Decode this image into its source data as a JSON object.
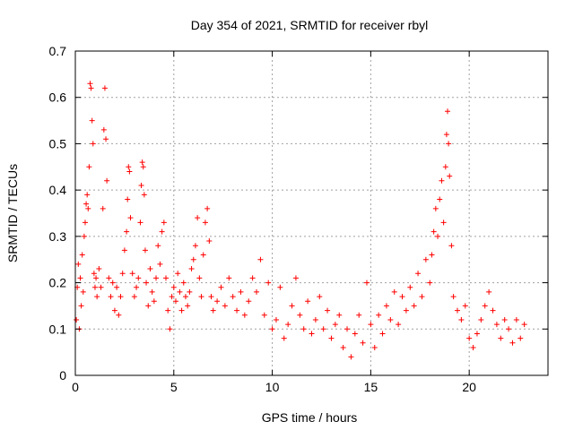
{
  "chart_data": {
    "type": "scatter",
    "title": "Day 354 of 2021, SRMTID for receiver rbyl",
    "xlabel": "GPS time / hours",
    "ylabel": "SRMTID / TECUs",
    "xlim": [
      0,
      24
    ],
    "ylim": [
      0,
      0.7
    ],
    "xticks": [
      0,
      5,
      10,
      15,
      20
    ],
    "yticks": [
      0,
      0.1,
      0.2,
      0.3,
      0.4,
      0.5,
      0.6,
      0.7
    ],
    "grid": true,
    "marker": "+",
    "series": [
      {
        "name": "SRMTID",
        "color": "#ff0000",
        "points": [
          [
            0.05,
            0.12
          ],
          [
            0.1,
            0.19
          ],
          [
            0.15,
            0.24
          ],
          [
            0.2,
            0.1
          ],
          [
            0.25,
            0.21
          ],
          [
            0.3,
            0.15
          ],
          [
            0.35,
            0.26
          ],
          [
            0.4,
            0.18
          ],
          [
            0.45,
            0.3
          ],
          [
            0.5,
            0.33
          ],
          [
            0.55,
            0.37
          ],
          [
            0.6,
            0.39
          ],
          [
            0.65,
            0.36
          ],
          [
            0.7,
            0.45
          ],
          [
            0.75,
            0.63
          ],
          [
            0.8,
            0.62
          ],
          [
            0.85,
            0.55
          ],
          [
            0.9,
            0.5
          ],
          [
            0.95,
            0.22
          ],
          [
            1.0,
            0.19
          ],
          [
            1.05,
            0.21
          ],
          [
            1.1,
            0.17
          ],
          [
            1.2,
            0.23
          ],
          [
            1.3,
            0.19
          ],
          [
            1.4,
            0.36
          ],
          [
            1.45,
            0.53
          ],
          [
            1.5,
            0.62
          ],
          [
            1.55,
            0.51
          ],
          [
            1.6,
            0.42
          ],
          [
            1.7,
            0.21
          ],
          [
            1.8,
            0.17
          ],
          [
            1.9,
            0.2
          ],
          [
            2.0,
            0.14
          ],
          [
            2.1,
            0.19
          ],
          [
            2.2,
            0.13
          ],
          [
            2.3,
            0.17
          ],
          [
            2.4,
            0.22
          ],
          [
            2.5,
            0.27
          ],
          [
            2.6,
            0.31
          ],
          [
            2.65,
            0.38
          ],
          [
            2.7,
            0.45
          ],
          [
            2.75,
            0.44
          ],
          [
            2.8,
            0.34
          ],
          [
            2.9,
            0.22
          ],
          [
            3.0,
            0.17
          ],
          [
            3.1,
            0.19
          ],
          [
            3.2,
            0.21
          ],
          [
            3.3,
            0.33
          ],
          [
            3.35,
            0.41
          ],
          [
            3.4,
            0.46
          ],
          [
            3.45,
            0.45
          ],
          [
            3.5,
            0.39
          ],
          [
            3.55,
            0.27
          ],
          [
            3.6,
            0.2
          ],
          [
            3.7,
            0.15
          ],
          [
            3.8,
            0.23
          ],
          [
            3.9,
            0.18
          ],
          [
            4.0,
            0.16
          ],
          [
            4.1,
            0.21
          ],
          [
            4.2,
            0.28
          ],
          [
            4.3,
            0.24
          ],
          [
            4.4,
            0.31
          ],
          [
            4.5,
            0.33
          ],
          [
            4.6,
            0.21
          ],
          [
            4.7,
            0.14
          ],
          [
            4.8,
            0.1
          ],
          [
            4.9,
            0.17
          ],
          [
            5.0,
            0.19
          ],
          [
            5.1,
            0.16
          ],
          [
            5.2,
            0.22
          ],
          [
            5.3,
            0.18
          ],
          [
            5.4,
            0.14
          ],
          [
            5.5,
            0.2
          ],
          [
            5.6,
            0.17
          ],
          [
            5.7,
            0.15
          ],
          [
            5.8,
            0.18
          ],
          [
            5.9,
            0.23
          ],
          [
            6.0,
            0.25
          ],
          [
            6.1,
            0.28
          ],
          [
            6.2,
            0.34
          ],
          [
            6.3,
            0.21
          ],
          [
            6.4,
            0.17
          ],
          [
            6.5,
            0.26
          ],
          [
            6.6,
            0.33
          ],
          [
            6.7,
            0.36
          ],
          [
            6.8,
            0.29
          ],
          [
            6.9,
            0.17
          ],
          [
            7.0,
            0.14
          ],
          [
            7.2,
            0.16
          ],
          [
            7.4,
            0.19
          ],
          [
            7.6,
            0.15
          ],
          [
            7.8,
            0.21
          ],
          [
            8.0,
            0.17
          ],
          [
            8.2,
            0.14
          ],
          [
            8.4,
            0.18
          ],
          [
            8.6,
            0.13
          ],
          [
            8.8,
            0.16
          ],
          [
            9.0,
            0.21
          ],
          [
            9.2,
            0.18
          ],
          [
            9.4,
            0.25
          ],
          [
            9.6,
            0.13
          ],
          [
            9.8,
            0.2
          ],
          [
            10.0,
            0.1
          ],
          [
            10.2,
            0.12
          ],
          [
            10.4,
            0.19
          ],
          [
            10.6,
            0.08
          ],
          [
            10.8,
            0.11
          ],
          [
            11.0,
            0.15
          ],
          [
            11.2,
            0.21
          ],
          [
            11.4,
            0.13
          ],
          [
            11.6,
            0.1
          ],
          [
            11.8,
            0.16
          ],
          [
            12.0,
            0.09
          ],
          [
            12.2,
            0.12
          ],
          [
            12.4,
            0.17
          ],
          [
            12.6,
            0.1
          ],
          [
            12.8,
            0.14
          ],
          [
            13.0,
            0.08
          ],
          [
            13.2,
            0.11
          ],
          [
            13.4,
            0.13
          ],
          [
            13.6,
            0.06
          ],
          [
            13.8,
            0.1
          ],
          [
            14.0,
            0.04
          ],
          [
            14.2,
            0.09
          ],
          [
            14.4,
            0.13
          ],
          [
            14.6,
            0.07
          ],
          [
            14.8,
            0.2
          ],
          [
            15.0,
            0.11
          ],
          [
            15.2,
            0.06
          ],
          [
            15.4,
            0.13
          ],
          [
            15.6,
            0.09
          ],
          [
            15.8,
            0.15
          ],
          [
            16.0,
            0.12
          ],
          [
            16.2,
            0.18
          ],
          [
            16.4,
            0.11
          ],
          [
            16.6,
            0.17
          ],
          [
            16.8,
            0.14
          ],
          [
            17.0,
            0.19
          ],
          [
            17.2,
            0.15
          ],
          [
            17.4,
            0.22
          ],
          [
            17.6,
            0.17
          ],
          [
            17.8,
            0.25
          ],
          [
            18.0,
            0.2
          ],
          [
            18.1,
            0.26
          ],
          [
            18.2,
            0.31
          ],
          [
            18.3,
            0.36
          ],
          [
            18.4,
            0.3
          ],
          [
            18.5,
            0.38
          ],
          [
            18.6,
            0.42
          ],
          [
            18.7,
            0.33
          ],
          [
            18.8,
            0.45
          ],
          [
            18.85,
            0.52
          ],
          [
            18.9,
            0.57
          ],
          [
            18.95,
            0.5
          ],
          [
            19.0,
            0.43
          ],
          [
            19.1,
            0.28
          ],
          [
            19.2,
            0.17
          ],
          [
            19.4,
            0.14
          ],
          [
            19.6,
            0.12
          ],
          [
            19.8,
            0.15
          ],
          [
            20.0,
            0.08
          ],
          [
            20.2,
            0.06
          ],
          [
            20.4,
            0.09
          ],
          [
            20.6,
            0.12
          ],
          [
            20.8,
            0.15
          ],
          [
            21.0,
            0.18
          ],
          [
            21.2,
            0.14
          ],
          [
            21.4,
            0.11
          ],
          [
            21.6,
            0.08
          ],
          [
            21.8,
            0.12
          ],
          [
            22.0,
            0.1
          ],
          [
            22.2,
            0.07
          ],
          [
            22.4,
            0.12
          ],
          [
            22.6,
            0.08
          ],
          [
            22.8,
            0.11
          ]
        ]
      }
    ]
  }
}
